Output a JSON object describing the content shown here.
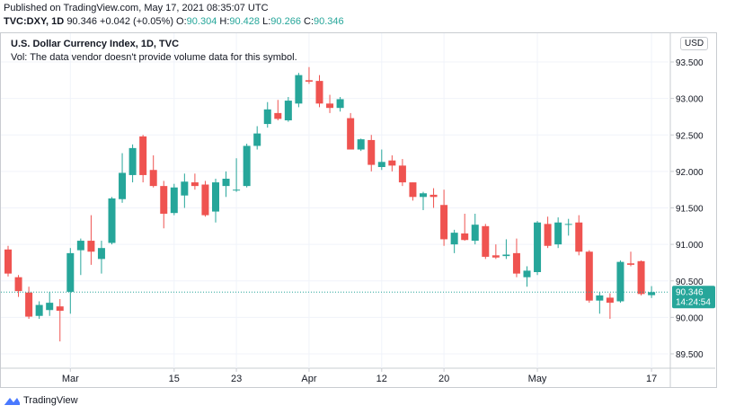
{
  "header": {
    "published": "Published on TradingView.com, May 17, 2021 08:35:07 UTC",
    "symbol": "TVC:DXY, 1D",
    "last": "90.346",
    "change": "+0.042 (+0.05%)",
    "o_label": "O:",
    "o": "90.304",
    "h_label": "H:",
    "h": "90.428",
    "l_label": "L:",
    "l": "90.266",
    "c_label": "C:",
    "c": "90.346"
  },
  "legend": {
    "title": "U.S. Dollar Currency Index, 1D, TVC",
    "volume_note": "Vol: The data vendor doesn't provide volume data for this symbol."
  },
  "currency": "USD",
  "price_tag": {
    "price": "90.346",
    "countdown": "14:24:54"
  },
  "footer": {
    "brand": "TradingView"
  },
  "colors": {
    "up": "#26a69a",
    "down": "#ef5350",
    "grid": "#f0f3fa",
    "axis_text": "#131722"
  },
  "chart_data": {
    "type": "candlestick",
    "title": "U.S. Dollar Currency Index, 1D, TVC",
    "y_ticks": [
      "93.500",
      "93.000",
      "92.500",
      "92.000",
      "91.500",
      "91.000",
      "90.500",
      "90.000",
      "89.500"
    ],
    "ylim": [
      89.3,
      93.7
    ],
    "x_ticks": [
      {
        "label": "Mar",
        "index": 6
      },
      {
        "label": "15",
        "index": 16
      },
      {
        "label": "23",
        "index": 22
      },
      {
        "label": "Apr",
        "index": 29
      },
      {
        "label": "12",
        "index": 36
      },
      {
        "label": "20",
        "index": 42
      },
      {
        "label": "May",
        "index": 51
      },
      {
        "label": "17",
        "index": 62
      }
    ],
    "current_price": 90.346,
    "grid": true,
    "candles": [
      {
        "o": 90.93,
        "h": 90.98,
        "l": 90.56,
        "c": 90.6
      },
      {
        "o": 90.55,
        "h": 90.58,
        "l": 90.28,
        "c": 90.36
      },
      {
        "o": 90.34,
        "h": 90.42,
        "l": 89.98,
        "c": 90.01
      },
      {
        "o": 90.02,
        "h": 90.22,
        "l": 89.98,
        "c": 90.17
      },
      {
        "o": 90.1,
        "h": 90.35,
        "l": 90.02,
        "c": 90.2
      },
      {
        "o": 90.15,
        "h": 90.25,
        "l": 89.67,
        "c": 90.09
      },
      {
        "o": 90.35,
        "h": 90.95,
        "l": 90.05,
        "c": 90.88
      },
      {
        "o": 90.92,
        "h": 91.08,
        "l": 90.58,
        "c": 91.05
      },
      {
        "o": 91.05,
        "h": 91.4,
        "l": 90.72,
        "c": 90.9
      },
      {
        "o": 90.8,
        "h": 91.05,
        "l": 90.6,
        "c": 90.95
      },
      {
        "o": 91.02,
        "h": 91.65,
        "l": 91.0,
        "c": 91.63
      },
      {
        "o": 91.62,
        "h": 92.25,
        "l": 91.57,
        "c": 91.98
      },
      {
        "o": 91.95,
        "h": 92.37,
        "l": 91.85,
        "c": 92.32
      },
      {
        "o": 92.48,
        "h": 92.5,
        "l": 91.85,
        "c": 91.95
      },
      {
        "o": 92.02,
        "h": 92.22,
        "l": 91.78,
        "c": 91.8
      },
      {
        "o": 91.8,
        "h": 91.87,
        "l": 91.22,
        "c": 91.42
      },
      {
        "o": 91.43,
        "h": 91.83,
        "l": 91.4,
        "c": 91.78
      },
      {
        "o": 91.67,
        "h": 91.97,
        "l": 91.5,
        "c": 91.86
      },
      {
        "o": 91.85,
        "h": 91.97,
        "l": 91.75,
        "c": 91.8
      },
      {
        "o": 91.82,
        "h": 91.87,
        "l": 91.38,
        "c": 91.4
      },
      {
        "o": 91.45,
        "h": 91.9,
        "l": 91.3,
        "c": 91.85
      },
      {
        "o": 91.8,
        "h": 92.0,
        "l": 91.65,
        "c": 91.9
      },
      {
        "o": 91.75,
        "h": 92.18,
        "l": 91.72,
        "c": 91.75
      },
      {
        "o": 91.8,
        "h": 92.38,
        "l": 91.78,
        "c": 92.35
      },
      {
        "o": 92.35,
        "h": 92.62,
        "l": 92.3,
        "c": 92.52
      },
      {
        "o": 92.65,
        "h": 92.95,
        "l": 92.6,
        "c": 92.85
      },
      {
        "o": 92.8,
        "h": 92.98,
        "l": 92.7,
        "c": 92.72
      },
      {
        "o": 92.7,
        "h": 93.02,
        "l": 92.68,
        "c": 92.97
      },
      {
        "o": 92.93,
        "h": 93.35,
        "l": 92.88,
        "c": 93.32
      },
      {
        "o": 93.25,
        "h": 93.43,
        "l": 93.2,
        "c": 93.23
      },
      {
        "o": 93.24,
        "h": 93.32,
        "l": 92.88,
        "c": 92.93
      },
      {
        "o": 92.93,
        "h": 93.05,
        "l": 92.8,
        "c": 92.87
      },
      {
        "o": 92.87,
        "h": 93.02,
        "l": 92.82,
        "c": 92.99
      },
      {
        "o": 92.73,
        "h": 92.8,
        "l": 92.3,
        "c": 92.3
      },
      {
        "o": 92.3,
        "h": 92.45,
        "l": 92.28,
        "c": 92.44
      },
      {
        "o": 92.43,
        "h": 92.5,
        "l": 92.0,
        "c": 92.09
      },
      {
        "o": 92.06,
        "h": 92.3,
        "l": 92.02,
        "c": 92.13
      },
      {
        "o": 92.15,
        "h": 92.22,
        "l": 92.0,
        "c": 92.08
      },
      {
        "o": 92.08,
        "h": 92.17,
        "l": 91.8,
        "c": 91.85
      },
      {
        "o": 91.85,
        "h": 91.85,
        "l": 91.6,
        "c": 91.65
      },
      {
        "o": 91.65,
        "h": 91.72,
        "l": 91.47,
        "c": 91.7
      },
      {
        "o": 91.68,
        "h": 91.77,
        "l": 91.5,
        "c": 91.65
      },
      {
        "o": 91.54,
        "h": 91.75,
        "l": 90.98,
        "c": 91.07
      },
      {
        "o": 91.0,
        "h": 91.2,
        "l": 90.88,
        "c": 91.16
      },
      {
        "o": 91.15,
        "h": 91.42,
        "l": 91.05,
        "c": 91.06
      },
      {
        "o": 91.05,
        "h": 91.42,
        "l": 91.0,
        "c": 91.27
      },
      {
        "o": 91.25,
        "h": 91.28,
        "l": 90.8,
        "c": 90.83
      },
      {
        "o": 90.85,
        "h": 91.0,
        "l": 90.8,
        "c": 90.82
      },
      {
        "o": 90.84,
        "h": 91.07,
        "l": 90.8,
        "c": 90.86
      },
      {
        "o": 90.88,
        "h": 91.08,
        "l": 90.55,
        "c": 90.6
      },
      {
        "o": 90.55,
        "h": 90.7,
        "l": 90.42,
        "c": 90.64
      },
      {
        "o": 90.62,
        "h": 91.32,
        "l": 90.58,
        "c": 91.3
      },
      {
        "o": 91.28,
        "h": 91.38,
        "l": 90.95,
        "c": 90.98
      },
      {
        "o": 91.0,
        "h": 91.37,
        "l": 90.95,
        "c": 91.3
      },
      {
        "o": 91.28,
        "h": 91.35,
        "l": 91.12,
        "c": 91.28
      },
      {
        "o": 91.3,
        "h": 91.4,
        "l": 90.85,
        "c": 90.9
      },
      {
        "o": 90.9,
        "h": 90.92,
        "l": 90.2,
        "c": 90.23
      },
      {
        "o": 90.23,
        "h": 90.35,
        "l": 90.05,
        "c": 90.3
      },
      {
        "o": 90.27,
        "h": 90.33,
        "l": 89.98,
        "c": 90.2
      },
      {
        "o": 90.22,
        "h": 90.78,
        "l": 90.2,
        "c": 90.76
      },
      {
        "o": 90.74,
        "h": 90.9,
        "l": 90.7,
        "c": 90.72
      },
      {
        "o": 90.77,
        "h": 90.78,
        "l": 90.3,
        "c": 90.32
      },
      {
        "o": 90.304,
        "h": 90.428,
        "l": 90.266,
        "c": 90.346
      }
    ]
  }
}
